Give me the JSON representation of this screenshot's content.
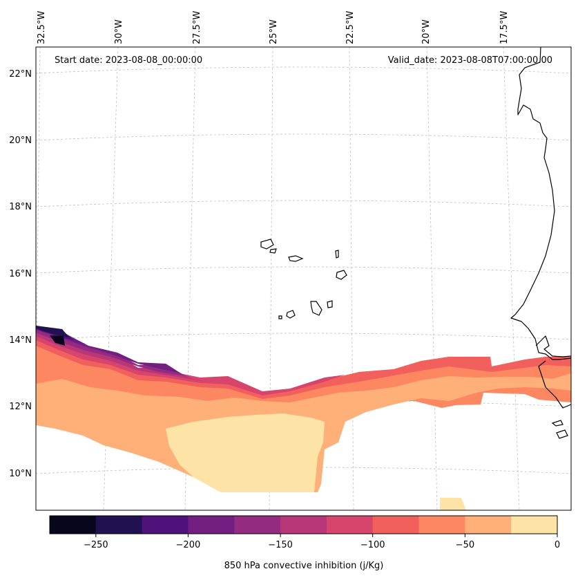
{
  "header": {
    "start_date": "Start date: 2023-08-08_00:00:00",
    "valid_date": "Valid_date: 2023-08-08T07:00:00.00"
  },
  "axes": {
    "lon_labels": [
      "32.5°W",
      "30°W",
      "27.5°W",
      "25°W",
      "22.5°W",
      "20°W",
      "17.5°W"
    ],
    "lat_labels": [
      "22°N",
      "20°N",
      "18°N",
      "16°N",
      "14°N",
      "12°N",
      "10°N"
    ]
  },
  "colorbar": {
    "label": "850 hPa convective inhibition (j/Kg)",
    "tick_labels": [
      "−250",
      "−200",
      "−150",
      "−100",
      "−50",
      "0"
    ],
    "levels": [
      -275,
      -250,
      -225,
      -200,
      -175,
      -150,
      -125,
      -100,
      -75,
      -50,
      -25,
      0
    ],
    "colors": [
      "#07061c",
      "#221150",
      "#4f127b",
      "#721f81",
      "#932b80",
      "#b73779",
      "#d8456c",
      "#f1605d",
      "#fc8761",
      "#feb078",
      "#fde3a5"
    ]
  },
  "field_colors": {
    "level_0_25": "#fde3a5",
    "level_25_50": "#feb078",
    "level_50_75": "#fc8761",
    "level_75_100": "#f1605d",
    "level_100_125": "#d8456c",
    "level_125_150": "#b73779",
    "level_150_175": "#932b80",
    "level_175_200": "#721f81",
    "level_200_225": "#4f127b",
    "level_225_250": "#221150",
    "level_250_275": "#07061c"
  }
}
